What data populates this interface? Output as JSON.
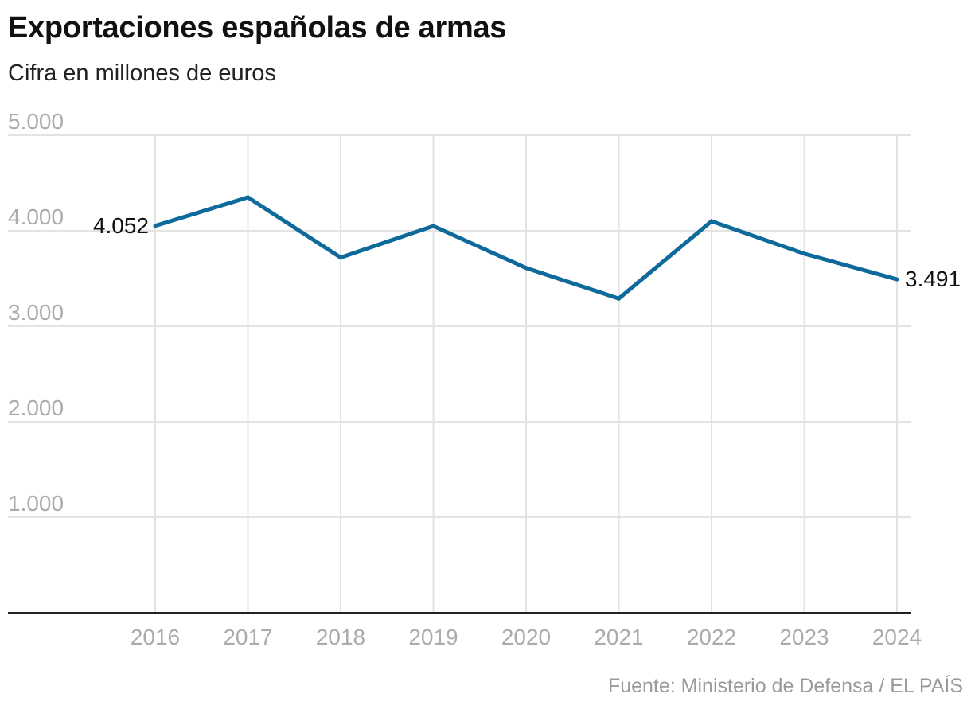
{
  "header": {
    "title": "Exportaciones españolas de armas",
    "subtitle": "Cifra en millones de euros"
  },
  "footer": {
    "source": "Fuente: Ministerio de Defensa / EL PAÍS"
  },
  "colors": {
    "line": "#0e6a9a",
    "grid": "#e3e3e3",
    "axis": "#222222",
    "tick_text": "#ababab"
  },
  "chart_data": {
    "type": "line",
    "title": "Exportaciones españolas de armas",
    "subtitle": "Cifra en millones de euros",
    "xlabel": "",
    "ylabel": "",
    "x": [
      "2016",
      "2017",
      "2018",
      "2019",
      "2020",
      "2021",
      "2022",
      "2023",
      "2024"
    ],
    "series": [
      {
        "values": [
          4052,
          4350,
          3720,
          4050,
          3610,
          3290,
          4100,
          3760,
          3491
        ]
      }
    ],
    "ylim": [
      0,
      5000
    ],
    "yticks": [
      1000,
      2000,
      3000,
      4000,
      5000
    ],
    "ytick_labels": [
      "1.000",
      "2.000",
      "3.000",
      "4.000",
      "5.000"
    ],
    "data_labels": [
      {
        "x": "2016",
        "text": "4.052"
      },
      {
        "x": "2024",
        "text": "3.491"
      }
    ],
    "grid": true,
    "legend": "none"
  }
}
